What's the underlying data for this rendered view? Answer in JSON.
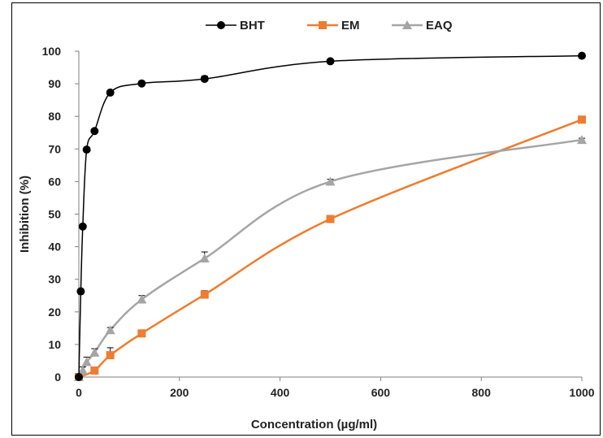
{
  "chart_data": {
    "type": "line",
    "xlabel": "Concentration (µg/ml)",
    "ylabel": "Inhibition (%)",
    "xlim": [
      0,
      1000
    ],
    "ylim": [
      0,
      100
    ],
    "xticks": [
      0,
      200,
      400,
      600,
      800,
      1000
    ],
    "yticks": [
      0,
      10,
      20,
      30,
      40,
      50,
      60,
      70,
      80,
      90,
      100
    ],
    "grid": false,
    "legend_position": "top",
    "series": [
      {
        "name": "BHT",
        "color": "#000000",
        "marker": "circle",
        "x": [
          0,
          3.9,
          7.8,
          15.6,
          31.25,
          62.5,
          125,
          250,
          500,
          1000
        ],
        "y": [
          0,
          26.3,
          46.2,
          69.8,
          75.5,
          87.3,
          90.1,
          91.5,
          96.9,
          98.6
        ],
        "err": [
          0,
          0.5,
          0.5,
          0.6,
          0.5,
          0.6,
          0.5,
          0.9,
          0.5,
          0.5
        ]
      },
      {
        "name": "EM",
        "color": "#ED7D31",
        "marker": "square",
        "x": [
          0,
          31.25,
          62.5,
          125,
          250,
          500,
          1000
        ],
        "y": [
          0,
          2,
          6.7,
          13.4,
          25.3,
          48.5,
          79
        ],
        "err": [
          0,
          1.0,
          2.3,
          0.6,
          1.2,
          0.6,
          0.5
        ]
      },
      {
        "name": "EAQ",
        "color": "#A5A5A5",
        "marker": "triangle",
        "x": [
          0,
          7.8,
          15.6,
          31.25,
          62.5,
          125,
          250,
          500,
          1000
        ],
        "y": [
          0,
          2.1,
          4.6,
          7.5,
          14.4,
          23.8,
          36.4,
          60,
          72.8
        ],
        "err": [
          0,
          1.0,
          1.5,
          1.2,
          0.8,
          1.2,
          2.0,
          0.7,
          0.5
        ]
      }
    ]
  }
}
